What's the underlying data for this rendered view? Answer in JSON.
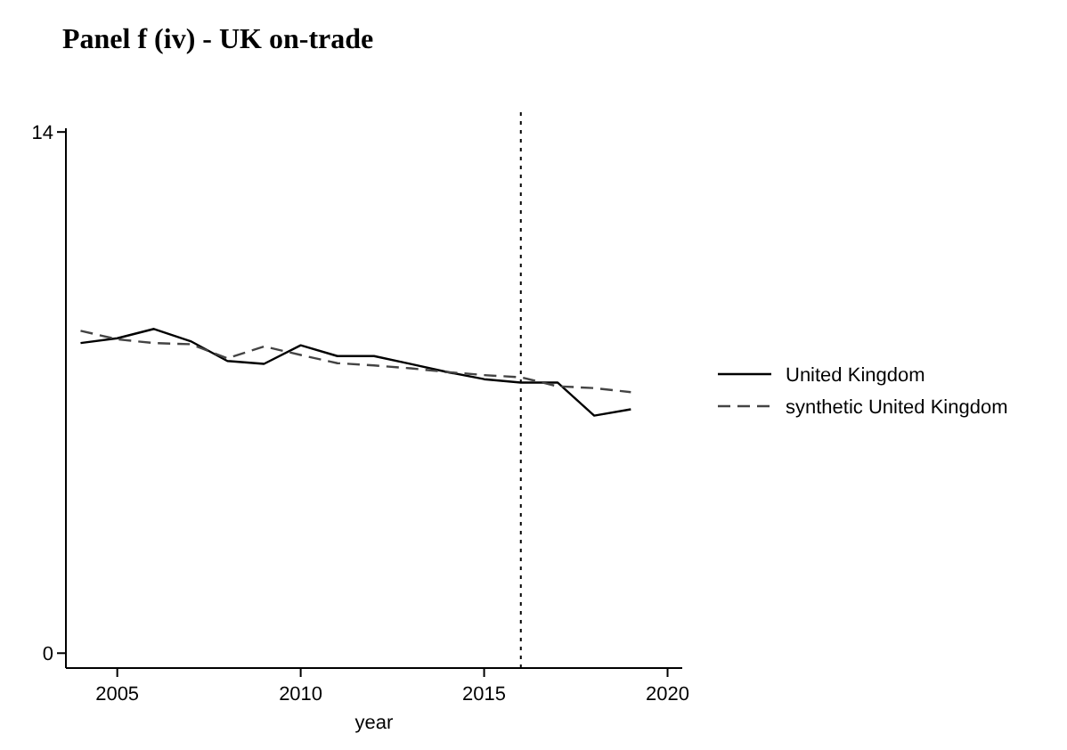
{
  "chart_data": {
    "type": "line",
    "title": "Panel f (iv) - UK on-trade",
    "xlabel": "year",
    "x": [
      2004,
      2005,
      2006,
      2007,
      2008,
      2009,
      2010,
      2011,
      2012,
      2013,
      2014,
      2015,
      2016,
      2017,
      2018,
      2019
    ],
    "series": [
      {
        "name": "United Kingdom",
        "color": "#000000",
        "line_style": "solid",
        "values": [
          8.33,
          8.46,
          8.71,
          8.38,
          7.85,
          7.77,
          8.27,
          7.98,
          7.98,
          7.77,
          7.55,
          7.36,
          7.27,
          7.27,
          6.38,
          6.55
        ]
      },
      {
        "name": "synthetic United Kingdom",
        "color": "#444444",
        "line_style": "dashed",
        "values": [
          8.66,
          8.43,
          8.33,
          8.3,
          7.92,
          8.24,
          8.01,
          7.79,
          7.73,
          7.65,
          7.55,
          7.47,
          7.41,
          7.17,
          7.12,
          7.01
        ]
      }
    ],
    "xlim": [
      2003.6,
      2020.4
    ],
    "xticks": [
      2005,
      2010,
      2015,
      2020
    ],
    "ylim": [
      -0.4,
      14.1
    ],
    "yticks": [
      0,
      14
    ],
    "ref_lines": [
      {
        "axis": "x",
        "value": 2016,
        "line_style": "dotted",
        "color": "#000000"
      }
    ],
    "legend": "right",
    "grid": false
  }
}
